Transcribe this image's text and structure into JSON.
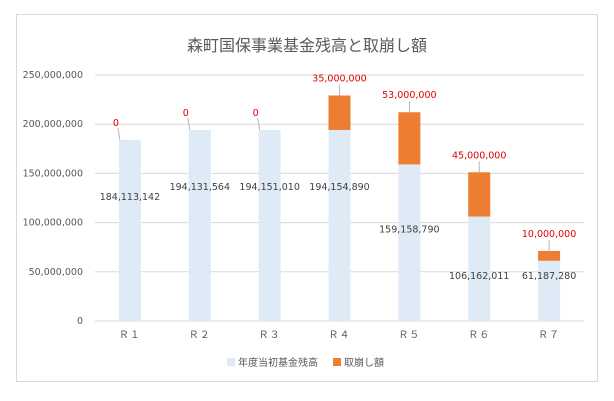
{
  "chart_data": {
    "type": "bar",
    "stacked": true,
    "title": "森町国保事業基金残高と取崩し額",
    "categories": [
      "Ｒ１",
      "Ｒ２",
      "Ｒ３",
      "Ｒ４",
      "Ｒ５",
      "Ｒ６",
      "Ｒ７"
    ],
    "series": [
      {
        "name": "年度当初基金残高",
        "color": "#deebf7",
        "values": [
          184113142,
          194131564,
          194151010,
          194154890,
          159158790,
          106162011,
          61187280
        ],
        "labels": [
          "184,113,142",
          "194,131,564",
          "194,151,010",
          "194,154,890",
          "159,158,790",
          "106,162,011",
          "61,187,280"
        ]
      },
      {
        "name": "取崩し額",
        "color": "#ed7d31",
        "values": [
          0,
          0,
          0,
          35000000,
          53000000,
          45000000,
          10000000
        ],
        "labels": [
          "0",
          "0",
          "0",
          "35,000,000",
          "53,000,000",
          "45,000,000",
          "10,000,000"
        ]
      }
    ],
    "ylim": [
      0,
      250000000
    ],
    "yticks": [
      0,
      50000000,
      100000000,
      150000000,
      200000000,
      250000000
    ],
    "ytick_labels": [
      "0",
      "50,000,000",
      "100,000,000",
      "150,000,000",
      "200,000,000",
      "250,000,000"
    ],
    "grid": true,
    "legend_position": "bottom",
    "label_color": "#e00000"
  }
}
